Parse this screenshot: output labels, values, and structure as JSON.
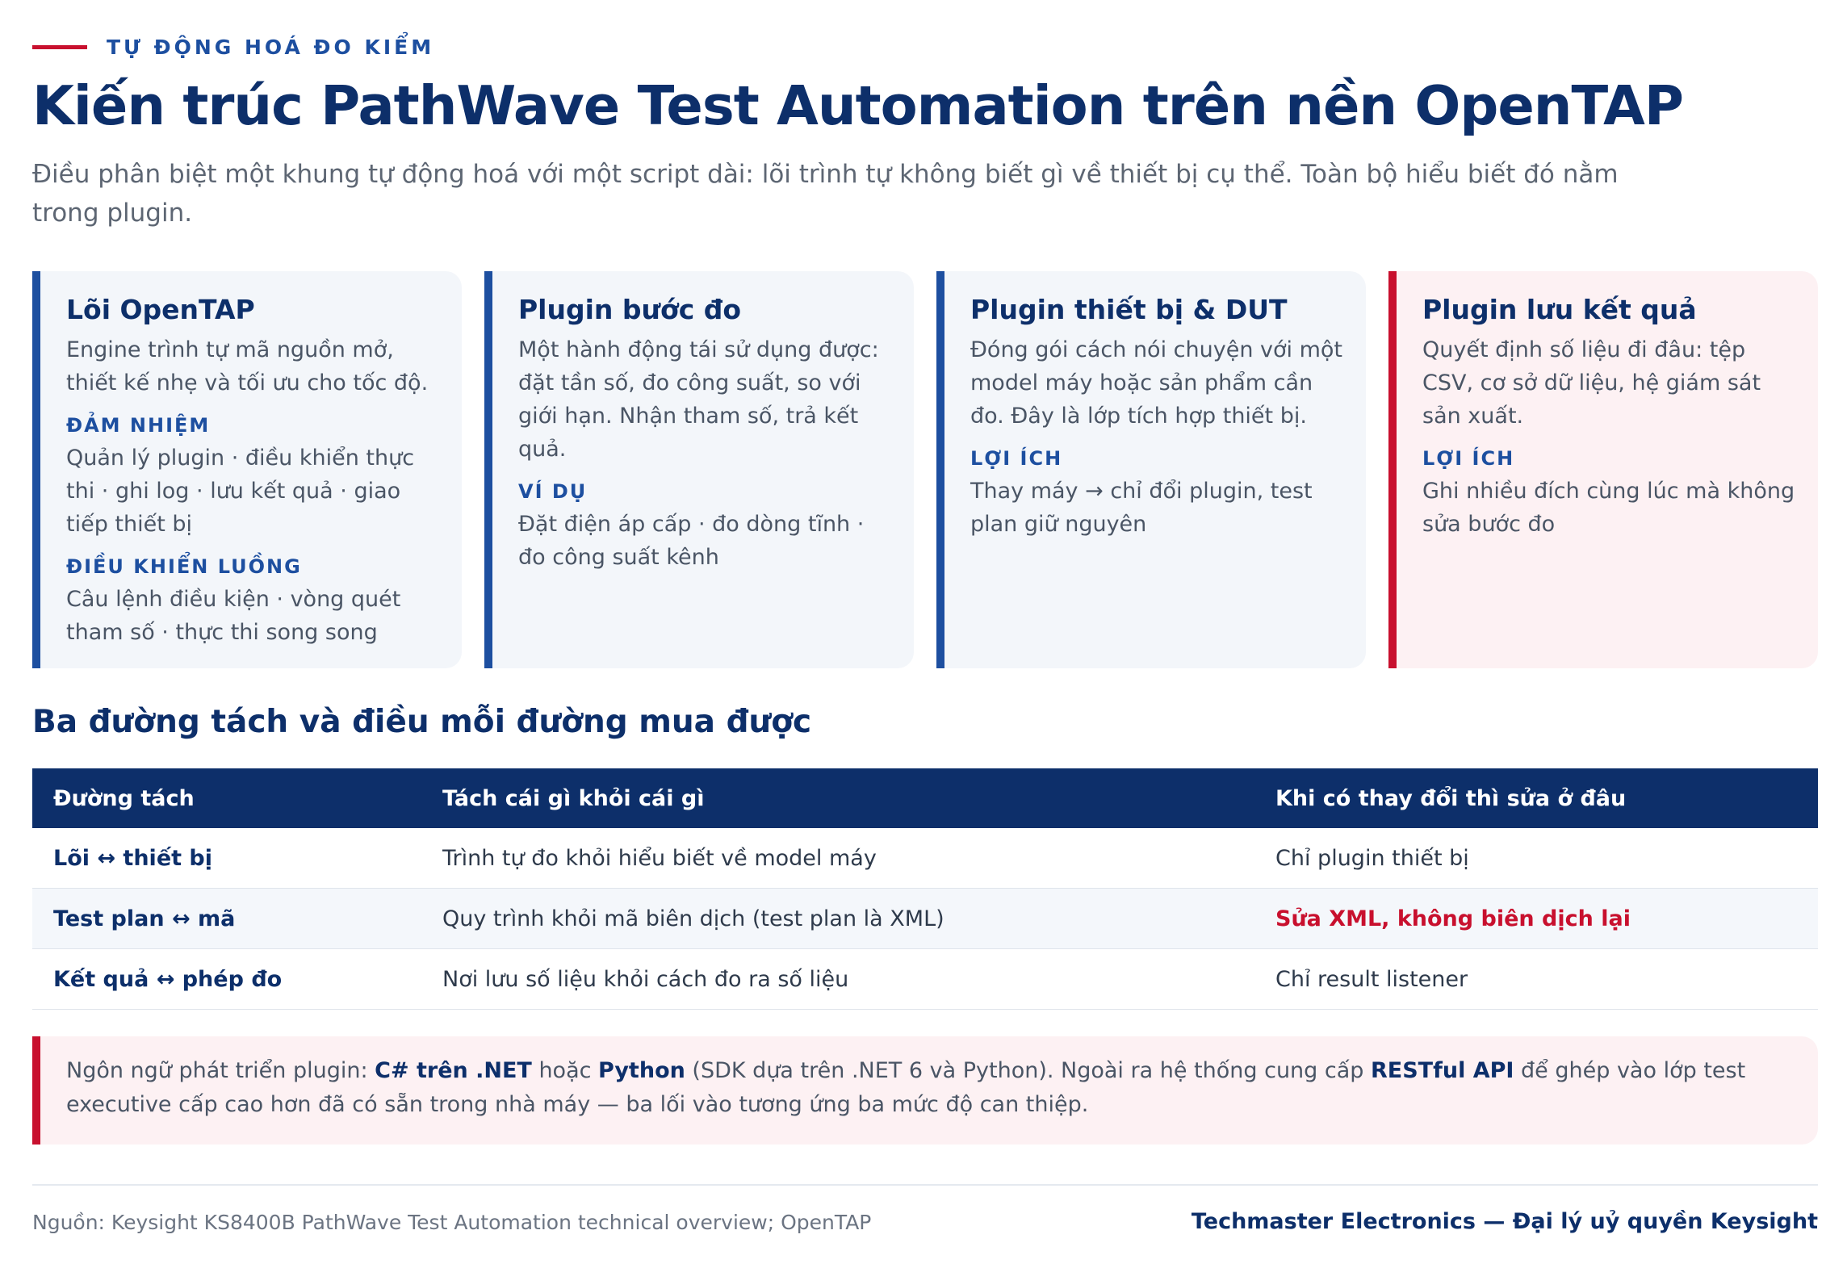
{
  "header": {
    "eyebrow": "TỰ ĐỘNG HOÁ ĐO KIỂM",
    "title": "Kiến trúc PathWave Test Automation trên nền OpenTAP",
    "subtitle": "Điều phân biệt một khung tự động hoá với một script dài: lõi trình tự không biết gì về thiết bị cụ thể. Toàn bộ hiểu biết đó nằm trong plugin."
  },
  "cards": [
    {
      "title": "Lõi OpenTAP",
      "body": "Engine trình tự mã nguồn mở, thiết kế nhẹ và tối ưu cho tốc độ.",
      "sections": [
        {
          "label": "ĐẢM NHIỆM",
          "text": "Quản lý plugin · điều khiển thực thi · ghi log · lưu kết quả · giao tiếp thiết bị"
        },
        {
          "label": "ĐIỀU KHIỂN LUỒNG",
          "text": "Câu lệnh điều kiện · vòng quét tham số · thực thi song song"
        }
      ]
    },
    {
      "title": "Plugin bước đo",
      "body": "Một hành động tái sử dụng được: đặt tần số, đo công suất, so với giới hạn. Nhận tham số, trả kết quả.",
      "sections": [
        {
          "label": "VÍ DỤ",
          "text": "Đặt điện áp cấp · đo dòng tĩnh · đo công suất kênh"
        }
      ]
    },
    {
      "title": "Plugin thiết bị & DUT",
      "body": "Đóng gói cách nói chuyện với một model máy hoặc sản phẩm cần đo. Đây là lớp tích hợp thiết bị.",
      "sections": [
        {
          "label": "LỢI ÍCH",
          "text": "Thay máy → chỉ đổi plugin, test plan giữ nguyên"
        }
      ]
    },
    {
      "title": "Plugin lưu kết quả",
      "body": "Quyết định số liệu đi đâu: tệp CSV, cơ sở dữ liệu, hệ giám sát sản xuất.",
      "sections": [
        {
          "label": "LỢI ÍCH",
          "text": "Ghi nhiều đích cùng lúc mà không sửa bước đo"
        }
      ]
    }
  ],
  "separation": {
    "title": "Ba đường tách và điều mỗi đường mua được",
    "headers": [
      "Đường tách",
      "Tách cái gì khỏi cái gì",
      "Khi có thay đổi thì sửa ở đâu"
    ],
    "rows": [
      [
        "Lõi ↔ thiết bị",
        "Trình tự đo khỏi hiểu biết về model máy",
        "Chỉ plugin thiết bị"
      ],
      [
        "Test plan ↔ mã",
        "Quy trình khỏi mã biên dịch (test plan là XML)",
        "Sửa XML, không biên dịch lại"
      ],
      [
        "Kết quả ↔ phép đo",
        "Nơi lưu số liệu khỏi cách đo ra số liệu",
        "Chỉ result listener"
      ]
    ]
  },
  "note": {
    "t1": "Ngôn ngữ phát triển plugin: ",
    "b1": "C# trên .NET",
    "t2": " hoặc ",
    "b2": "Python",
    "t3": " (SDK dựa trên .NET 6 và Python). Ngoài ra hệ thống cung cấp ",
    "b3": "RESTful API",
    "t4": " để ghép vào lớp test executive cấp cao hơn đã có sẵn trong nhà máy — ba lối vào tương ứng ba mức độ can thiệp."
  },
  "footer": {
    "source": "Nguồn: Keysight KS8400B PathWave Test Automation technical overview; OpenTAP",
    "brand": "Techmaster Electronics — Đại lý uỷ quyền Keysight"
  },
  "colors": {
    "navy": "#0d2f6a",
    "blue": "#1d4fa0",
    "red": "#c8102e",
    "card_bg": "#f3f6fa",
    "card_red_bg": "#fdf1f3"
  }
}
